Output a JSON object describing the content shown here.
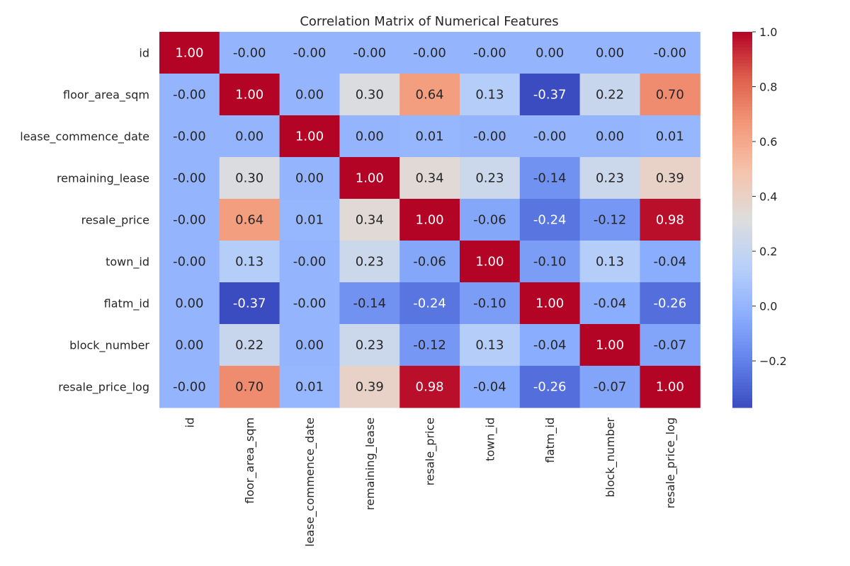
{
  "chart_data": {
    "type": "heatmap",
    "title": "Correlation Matrix of Numerical Features",
    "xlabel": "",
    "ylabel": "",
    "labels": [
      "id",
      "floor_area_sqm",
      "lease_commence_date",
      "remaining_lease",
      "resale_price",
      "town_id",
      "flatm_id",
      "block_number",
      "resale_price_log"
    ],
    "cell_text": [
      [
        "1.00",
        "-0.00",
        "-0.00",
        "-0.00",
        "-0.00",
        "-0.00",
        "0.00",
        "0.00",
        "-0.00"
      ],
      [
        "-0.00",
        "1.00",
        "0.00",
        "0.30",
        "0.64",
        "0.13",
        "-0.37",
        "0.22",
        "0.70"
      ],
      [
        "-0.00",
        "0.00",
        "1.00",
        "0.00",
        "0.01",
        "-0.00",
        "-0.00",
        "0.00",
        "0.01"
      ],
      [
        "-0.00",
        "0.30",
        "0.00",
        "1.00",
        "0.34",
        "0.23",
        "-0.14",
        "0.23",
        "0.39"
      ],
      [
        "-0.00",
        "0.64",
        "0.01",
        "0.34",
        "1.00",
        "-0.06",
        "-0.24",
        "-0.12",
        "0.98"
      ],
      [
        "-0.00",
        "0.13",
        "-0.00",
        "0.23",
        "-0.06",
        "1.00",
        "-0.10",
        "0.13",
        "-0.04"
      ],
      [
        "0.00",
        "-0.37",
        "-0.00",
        "-0.14",
        "-0.24",
        "-0.10",
        "1.00",
        "-0.04",
        "-0.26"
      ],
      [
        "0.00",
        "0.22",
        "0.00",
        "0.23",
        "-0.12",
        "0.13",
        "-0.04",
        "1.00",
        "-0.07"
      ],
      [
        "-0.00",
        "0.70",
        "0.01",
        "0.39",
        "0.98",
        "-0.04",
        "-0.26",
        "-0.07",
        "1.00"
      ]
    ],
    "colormap": "coolwarm",
    "color_range": [
      -0.37,
      1.0
    ],
    "colorbar_ticks": [
      1.0,
      0.8,
      0.6,
      0.4,
      0.2,
      0.0,
      -0.2
    ],
    "colorbar_tick_labels": [
      "1.0",
      "0.8",
      "0.6",
      "0.4",
      "0.2",
      "0.0",
      "−0.2"
    ],
    "colorbar_position": "right",
    "grid": false
  }
}
